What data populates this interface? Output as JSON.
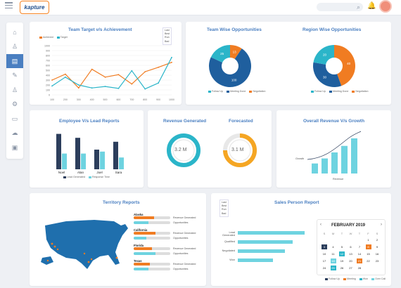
{
  "app": {
    "logo_text": "kapture",
    "colors": {
      "accent": "#4a7fc1",
      "orange": "#f07c22",
      "cyan": "#6ed3e0",
      "navy": "#2c3e5c",
      "teal": "#2bb5c9"
    }
  },
  "header": {
    "search_icon": "search-icon",
    "bell_icon": "bell-icon"
  },
  "sidebar": {
    "items": [
      {
        "icon": "home-icon",
        "glyph": "⌂"
      },
      {
        "icon": "user-icon",
        "glyph": "♙"
      },
      {
        "icon": "book-icon",
        "glyph": "▤"
      },
      {
        "icon": "edit-icon",
        "glyph": "✎"
      },
      {
        "icon": "user-plus-icon",
        "glyph": "♙"
      },
      {
        "icon": "settings-icon",
        "glyph": "⚙"
      },
      {
        "icon": "monitor-icon",
        "glyph": "▭"
      },
      {
        "icon": "cloud-icon",
        "glyph": "☁"
      },
      {
        "icon": "save-icon",
        "glyph": "▣"
      }
    ]
  },
  "team_target": {
    "title": "Team Target v/s Achievement",
    "legend": [
      "Achieved",
      "Target"
    ],
    "dropdown": [
      "Last",
      "Best",
      "Run",
      "Bad"
    ],
    "chart_data": {
      "type": "line",
      "x": [
        100,
        200,
        300,
        400,
        500,
        600,
        700,
        800,
        900,
        1000
      ],
      "series": [
        {
          "name": "Achieved",
          "values": [
            300,
            420,
            140,
            520,
            360,
            410,
            220,
            470,
            560,
            660
          ]
        },
        {
          "name": "Target",
          "values": [
            180,
            360,
            200,
            140,
            170,
            130,
            490,
            120,
            240,
            760
          ]
        }
      ],
      "yticks": [
        0,
        100,
        200,
        300,
        400,
        500,
        600,
        700,
        800,
        900,
        1000
      ],
      "ylim": [
        0,
        1000
      ]
    }
  },
  "team_wise": {
    "title": "Team Wise Opportunities",
    "legend": [
      "Follow Up",
      "Meeting Done",
      "Negotiation"
    ],
    "chart_data": {
      "type": "pie",
      "values": [
        13,
        100,
        25
      ],
      "labels": [
        "13",
        "100",
        "25"
      ]
    }
  },
  "region_wise": {
    "title": "Region Wise Opportunities",
    "legend": [
      "Follow Up",
      "Meeting Done",
      "Negotiation"
    ],
    "chart_data": {
      "type": "pie",
      "values": [
        40,
        30,
        20
      ],
      "labels": [
        "40",
        "30",
        "20"
      ]
    }
  },
  "employee": {
    "title": "Employee V/s Lead Reports",
    "names": [
      "Noel",
      "Alan",
      "Joel",
      "Sara"
    ],
    "legend": [
      "Lead Generated",
      "Response Time"
    ],
    "chart_data": {
      "type": "bar",
      "categories": [
        "Noel",
        "Alan",
        "Joel",
        "Sara"
      ],
      "series": [
        {
          "name": "Lead Generated",
          "values": [
            9,
            8,
            5,
            7
          ]
        },
        {
          "name": "Response Time",
          "values": [
            4,
            4,
            4.5,
            3
          ]
        }
      ]
    }
  },
  "revenue": {
    "title": "Revenue Generated",
    "value": "3.2 M",
    "forecast_title": "Forecasted",
    "forecast_value": "3.1 M"
  },
  "growth": {
    "title": "Overall Revenue V/s Growth",
    "y_label": "Growth",
    "x_label": "Revenue",
    "chart_data": {
      "type": "bar",
      "values": [
        2,
        3,
        4.2,
        5.5,
        7
      ]
    }
  },
  "territory": {
    "title": "Territory Reports",
    "states": [
      {
        "name": "Alaska",
        "rev": 0.55,
        "opp": 0.4
      },
      {
        "name": "California",
        "rev": 0.6,
        "opp": 0.35
      },
      {
        "name": "Florida",
        "rev": 0.5,
        "opp": 0.6
      },
      {
        "name": "Texas",
        "rev": 0.45,
        "opp": 0.4
      }
    ],
    "rev_label": "Revenue Generated",
    "opp_label": "Opportunities"
  },
  "sales": {
    "title": "Sales Person Report",
    "dropdown": [
      "Last",
      "Best",
      "Run",
      "Bad"
    ],
    "bars": [
      {
        "label": "Lead Generated",
        "value": 0.85
      },
      {
        "label": "Qualified",
        "value": 0.7
      },
      {
        "label": "Negotiated",
        "value": 0.6
      },
      {
        "label": "Won",
        "value": 0.45
      }
    ],
    "calendar_title": "FEBRUARY 2019",
    "weekdays": [
      "S",
      "M",
      "T",
      "W",
      "T",
      "F",
      "S"
    ],
    "days": [
      "",
      "",
      "",
      "",
      "",
      "1",
      "2",
      "3",
      "4",
      "5",
      "6",
      "7",
      "8",
      "9",
      "10",
      "11",
      "12",
      "13",
      "14",
      "15",
      "16",
      "17",
      "18",
      "19",
      "20",
      "21",
      "22",
      "23",
      "24",
      "25",
      "26",
      "27",
      "28"
    ],
    "legend": [
      "Follow Up",
      "Meeting",
      "Won",
      "Over Call"
    ]
  }
}
